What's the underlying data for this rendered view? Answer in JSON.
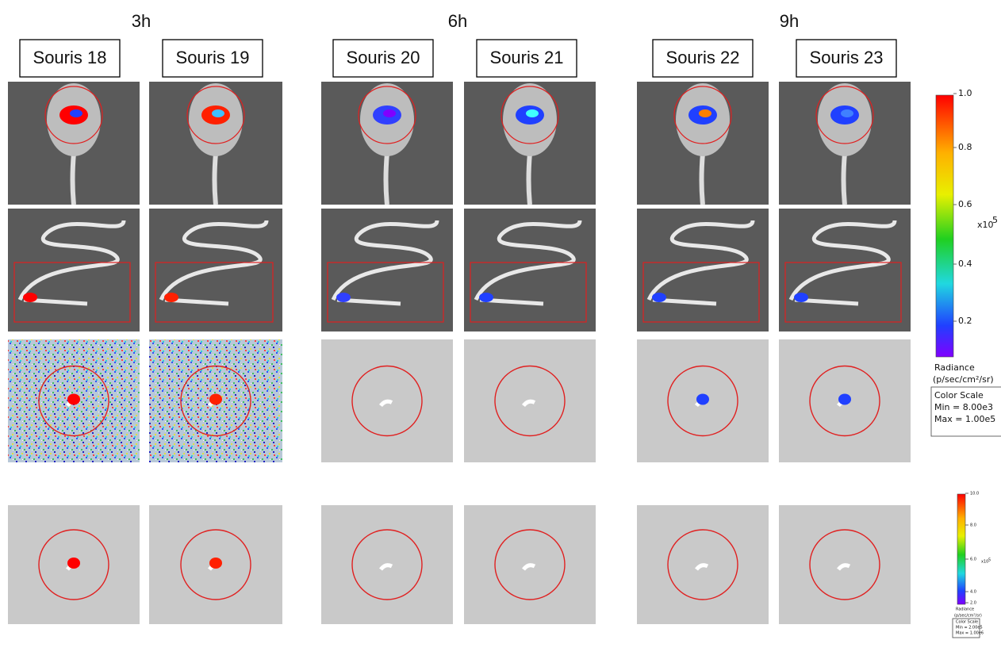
{
  "groups": [
    {
      "time": "3h",
      "mice": [
        "Souris 18",
        "Souris 19"
      ]
    },
    {
      "time": "6h",
      "mice": [
        "Souris 20",
        "Souris 21"
      ]
    },
    {
      "time": "9h",
      "mice": [
        "Souris 22",
        "Souris 23"
      ]
    }
  ],
  "color_scales": [
    {
      "ticks": [
        "1.0",
        "0.8",
        "0.6",
        "0.4",
        "0.2"
      ],
      "multiplier": "x10",
      "exponent": "5",
      "unit_title": "Radiance",
      "unit": "(p/sec/cm²/sr)",
      "box_title": "Color Scale",
      "min": "Min = 8.00e3",
      "max": "Max = 1.00e5"
    },
    {
      "ticks": [
        "10.0",
        "8.0",
        "6.0",
        "4.0",
        "2.0"
      ],
      "multiplier": "x10",
      "exponent": "5",
      "unit_title": "Radiance",
      "unit": "(p/sec/cm²/sr)",
      "box_title": "Color Scale",
      "min": "Min = 2.00e5",
      "max": "Max = 1.00e6"
    }
  ]
}
